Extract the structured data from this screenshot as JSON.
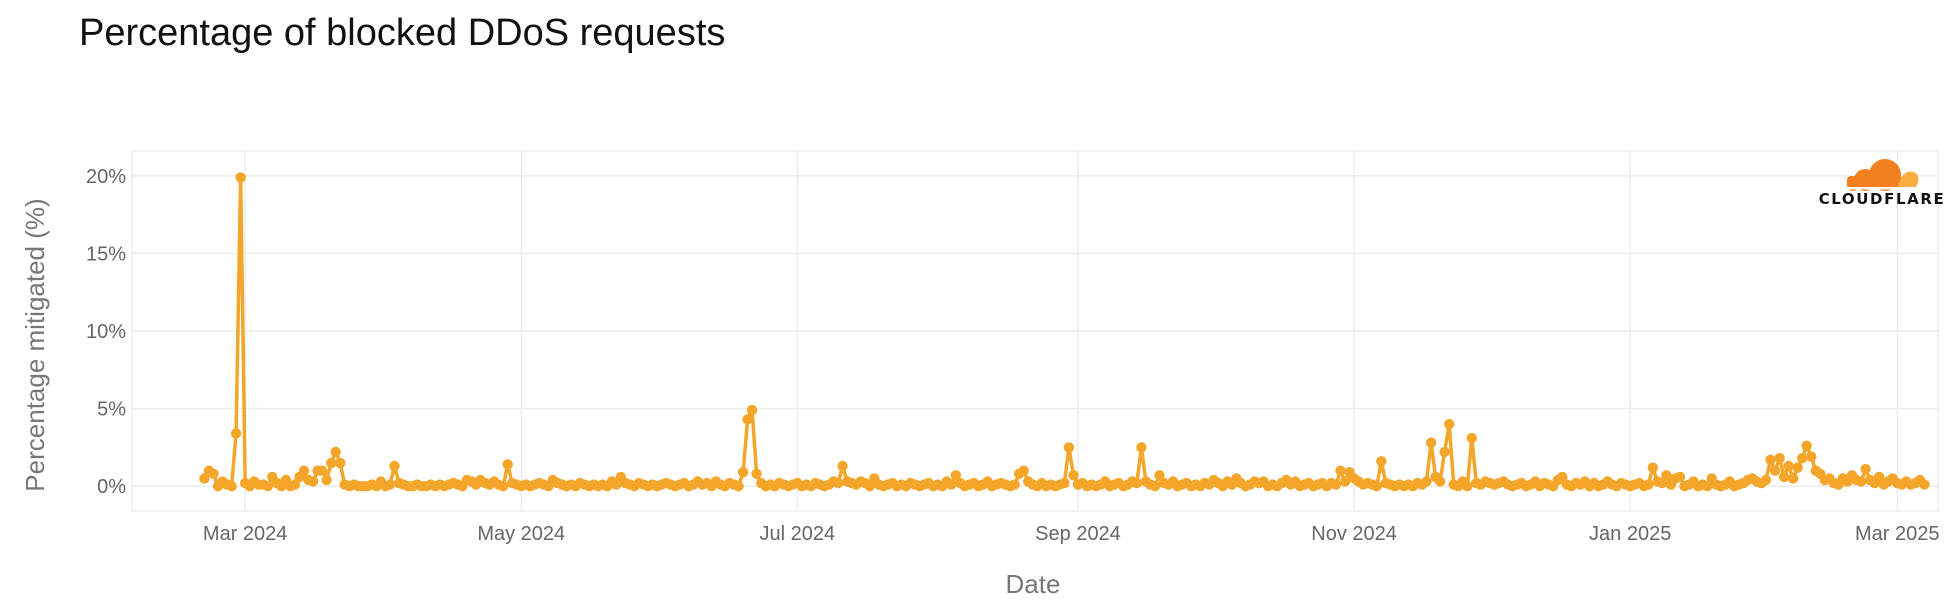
{
  "chart_data": {
    "type": "line",
    "title": "Percentage of blocked DDoS requests",
    "xlabel": "Date",
    "ylabel": "Percentage mitigated (%)",
    "ylim": [
      -1.6,
      21.6
    ],
    "xlim": [
      "2024-02-05",
      "2025-03-10"
    ],
    "y_ticks": [
      0,
      5,
      10,
      15,
      20
    ],
    "y_tick_labels": [
      "0%",
      "5%",
      "10%",
      "15%",
      "20%"
    ],
    "x_ticks": [
      "2024-03-01",
      "2024-05-01",
      "2024-07-01",
      "2024-09-01",
      "2024-11-01",
      "2025-01-01",
      "2025-03-01"
    ],
    "x_tick_labels": [
      "Mar 2024",
      "May 2024",
      "Jul 2024",
      "Sep 2024",
      "Nov 2024",
      "Jan 2025",
      "Mar 2025"
    ],
    "grid": true,
    "series_color": "#F4A62A",
    "start_date": "2024-02-21",
    "series": [
      {
        "values": [
          0.5,
          1.0,
          0.8,
          0.0,
          0.3,
          0.1,
          0.0,
          3.4,
          19.9,
          0.2,
          0.0,
          0.3,
          0.1,
          0.1,
          0.0,
          0.6,
          0.2,
          0.0,
          0.4,
          0.0,
          0.1,
          0.6,
          1.0,
          0.4,
          0.3,
          1.0,
          1.0,
          0.4,
          1.5,
          2.2,
          1.5,
          0.1,
          0.0,
          0.1,
          0.0,
          0.0,
          0.0,
          0.1,
          0.0,
          0.3,
          0.0,
          0.1,
          1.3,
          0.2,
          0.1,
          0.0,
          0.0,
          0.1,
          0.0,
          0.0,
          0.1,
          0.0,
          0.1,
          0.0,
          0.1,
          0.2,
          0.1,
          0.0,
          0.4,
          0.3,
          0.1,
          0.4,
          0.2,
          0.1,
          0.3,
          0.1,
          0.0,
          1.4,
          0.2,
          0.1,
          0.0,
          0.1,
          0.0,
          0.1,
          0.2,
          0.1,
          0.0,
          0.4,
          0.2,
          0.1,
          0.0,
          0.1,
          0.0,
          0.2,
          0.1,
          0.0,
          0.1,
          0.0,
          0.1,
          0.0,
          0.3,
          0.1,
          0.6,
          0.2,
          0.1,
          0.0,
          0.2,
          0.1,
          0.0,
          0.1,
          0.0,
          0.1,
          0.2,
          0.1,
          0.0,
          0.1,
          0.2,
          0.0,
          0.1,
          0.3,
          0.1,
          0.2,
          0.0,
          0.3,
          0.1,
          0.0,
          0.2,
          0.1,
          0.0,
          0.9,
          4.3,
          4.9,
          0.8,
          0.2,
          0.0,
          0.1,
          0.0,
          0.2,
          0.1,
          0.0,
          0.1,
          0.2,
          0.0,
          0.1,
          0.0,
          0.2,
          0.1,
          0.0,
          0.1,
          0.3,
          0.2,
          1.3,
          0.3,
          0.2,
          0.1,
          0.3,
          0.2,
          0.0,
          0.5,
          0.1,
          0.0,
          0.1,
          0.2,
          0.0,
          0.1,
          0.0,
          0.2,
          0.1,
          0.0,
          0.1,
          0.2,
          0.0,
          0.1,
          0.0,
          0.3,
          0.1,
          0.7,
          0.2,
          0.0,
          0.1,
          0.2,
          0.0,
          0.1,
          0.3,
          0.0,
          0.1,
          0.2,
          0.1,
          0.0,
          0.1,
          0.8,
          1.0,
          0.3,
          0.1,
          0.0,
          0.2,
          0.0,
          0.1,
          0.0,
          0.1,
          0.2,
          2.5,
          0.7,
          0.1,
          0.2,
          0.0,
          0.1,
          0.0,
          0.1,
          0.3,
          0.0,
          0.1,
          0.2,
          0.0,
          0.1,
          0.3,
          0.2,
          2.5,
          0.3,
          0.1,
          0.0,
          0.7,
          0.2,
          0.1,
          0.3,
          0.0,
          0.1,
          0.2,
          0.0,
          0.1,
          0.0,
          0.2,
          0.1,
          0.4,
          0.2,
          0.0,
          0.3,
          0.1,
          0.5,
          0.2,
          0.0,
          0.1,
          0.3,
          0.2,
          0.3,
          0.0,
          0.1,
          0.0,
          0.2,
          0.4,
          0.1,
          0.3,
          0.0,
          0.1,
          0.2,
          0.0,
          0.1,
          0.2,
          0.0,
          0.2,
          0.1,
          1.0,
          0.3,
          0.9,
          0.5,
          0.3,
          0.1,
          0.2,
          0.1,
          0.0,
          1.6,
          0.2,
          0.1,
          0.0,
          0.1,
          0.0,
          0.1,
          0.0,
          0.2,
          0.1,
          0.3,
          2.8,
          0.6,
          0.3,
          2.2,
          4.0,
          0.1,
          0.0,
          0.3,
          0.0,
          3.1,
          0.2,
          0.1,
          0.3,
          0.2,
          0.1,
          0.2,
          0.3,
          0.1,
          0.0,
          0.1,
          0.2,
          0.0,
          0.1,
          0.3,
          0.0,
          0.2,
          0.1,
          0.0,
          0.4,
          0.6,
          0.1,
          0.0,
          0.2,
          0.1,
          0.3,
          0.0,
          0.2,
          0.0,
          0.1,
          0.3,
          0.1,
          0.0,
          0.2,
          0.1,
          0.0,
          0.1,
          0.2,
          0.0,
          0.1,
          1.2,
          0.3,
          0.2,
          0.7,
          0.1,
          0.5,
          0.6,
          0.0,
          0.1,
          0.3,
          0.0,
          0.1,
          0.0,
          0.5,
          0.1,
          0.0,
          0.1,
          0.3,
          0.0,
          0.1,
          0.2,
          0.4,
          0.5,
          0.3,
          0.2,
          0.4,
          1.7,
          1.0,
          1.8,
          0.6,
          1.3,
          0.5,
          1.2,
          1.8,
          2.6,
          1.9,
          1.0,
          0.8,
          0.4,
          0.5,
          0.2,
          0.1,
          0.5,
          0.3,
          0.7,
          0.4,
          0.3,
          1.1,
          0.4,
          0.2,
          0.6,
          0.1,
          0.3,
          0.5,
          0.2,
          0.1,
          0.3,
          0.1,
          0.2,
          0.4,
          0.1
        ]
      }
    ]
  },
  "branding": {
    "logo_word": "CLOUDFLARE",
    "logo_icon": "cloudflare-cloud-icon",
    "logo_colors": [
      "#F38020",
      "#FBAD41"
    ]
  }
}
